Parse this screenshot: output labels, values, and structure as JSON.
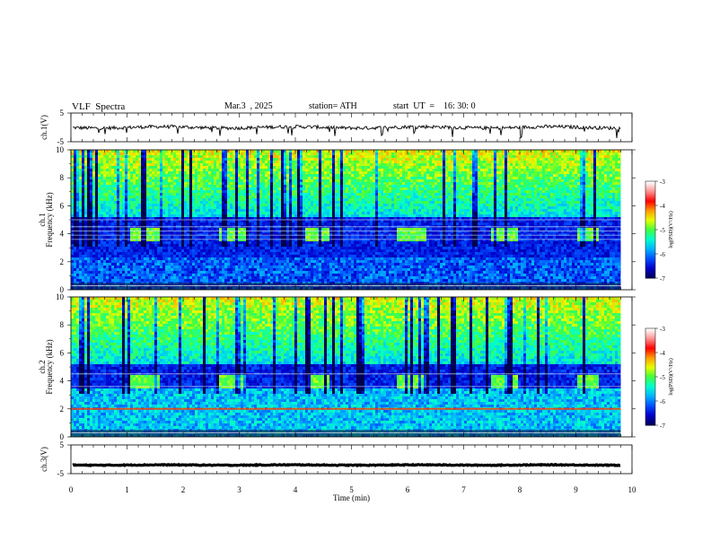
{
  "header": {
    "title": "VLF  Spectra",
    "date": "Mar.3  , 2025",
    "station": "station= ATH",
    "start": "start  UT  =    16: 30: 0"
  },
  "colors": {
    "waveform": "#000000",
    "colormap": [
      "#000000",
      "#00005a",
      "#0000cc",
      "#0050ff",
      "#00b4ff",
      "#00ffd0",
      "#40ff40",
      "#e6ff00",
      "#ff9c00",
      "#ff0000",
      "#ff9090",
      "#ffffff"
    ]
  },
  "chart_data": [
    {
      "type": "line",
      "panel": "ch1-waveform",
      "ylabel": "ch.1(V)",
      "ylim": [
        -5,
        5
      ],
      "y_ticks": [
        "5",
        "-5"
      ],
      "series": [
        {
          "mean": 0,
          "amplitude_approx": 0.6
        }
      ]
    },
    {
      "type": "heatmap",
      "panel": "ch1-spectrogram",
      "ylabel": "ch.1 Frequency  (kHz)",
      "ylim": [
        0,
        10
      ],
      "y_ticks": [
        "0",
        "2",
        "4",
        "6",
        "8",
        "10"
      ],
      "colorbar": {
        "label": "log(PSD)(V²/Hz)",
        "range": [
          -7,
          -3
        ],
        "ticks": [
          "-3",
          "-4",
          "-5",
          "-6",
          "-7"
        ]
      },
      "transmitter_tones_khz": [
        3.6,
        3.9,
        4.2,
        4.5,
        5.0
      ],
      "burst_segments_min": [
        [
          1.05,
          1.55
        ],
        [
          2.6,
          3.1
        ],
        [
          4.15,
          4.6
        ],
        [
          5.8,
          6.3
        ],
        [
          7.45,
          7.95
        ],
        [
          9.0,
          9.4
        ]
      ],
      "burst_band_khz": [
        3.5,
        4.5
      ],
      "low_band_khz": [
        0,
        2.4
      ]
    },
    {
      "type": "heatmap",
      "panel": "ch2-spectrogram",
      "ylabel": "ch.2 Frequency  (kHz)",
      "ylim": [
        0,
        10
      ],
      "y_ticks": [
        "0",
        "2",
        "4",
        "6",
        "8",
        "10"
      ],
      "colorbar": {
        "label": "log(PSD)(V²/Hz)",
        "range": [
          -7,
          -3
        ],
        "ticks": [
          "-3",
          "-4",
          "-5",
          "-6",
          "-7"
        ]
      },
      "transmitter_tones_khz": [
        2.0,
        3.6,
        4.5
      ],
      "burst_segments_min": [
        [
          1.05,
          1.55
        ],
        [
          2.6,
          3.1
        ],
        [
          4.15,
          4.6
        ],
        [
          5.8,
          6.3
        ],
        [
          7.45,
          7.95
        ],
        [
          9.0,
          9.4
        ]
      ],
      "burst_band_khz": [
        3.5,
        4.5
      ],
      "low_band_khz": [
        0,
        3.5
      ]
    },
    {
      "type": "line",
      "panel": "ch3-waveform",
      "ylabel": "ch.3(V)",
      "ylim": [
        -5,
        5
      ],
      "y_ticks": [
        "5",
        "-5"
      ],
      "series": [
        {
          "mean": -2,
          "amplitude_approx": 0.15
        }
      ]
    }
  ],
  "xaxis": {
    "label": "Time  (min)",
    "range": [
      0,
      10
    ],
    "ticks": [
      "0",
      "1",
      "2",
      "3",
      "4",
      "5",
      "6",
      "7",
      "8",
      "9",
      "10"
    ],
    "data_end_min": 9.8
  }
}
